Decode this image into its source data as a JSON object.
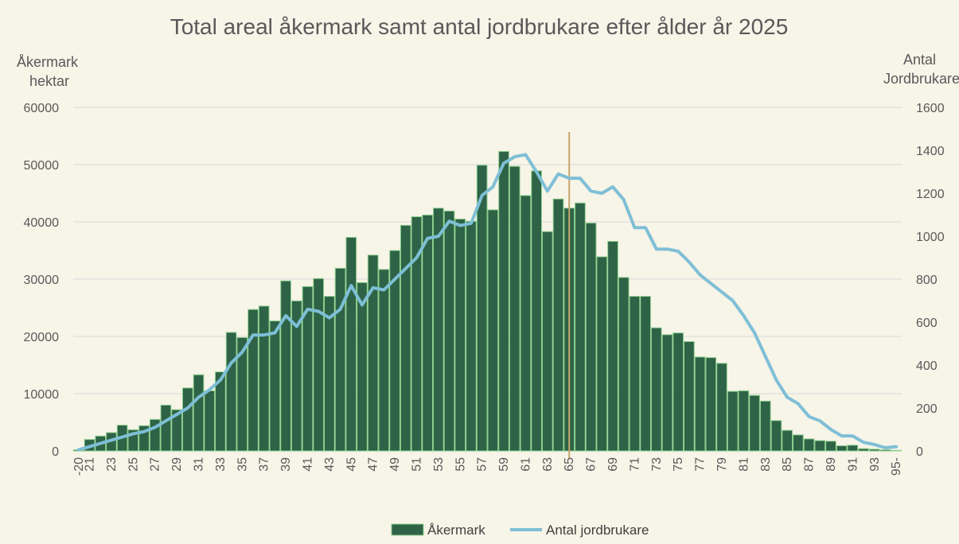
{
  "chart_data": {
    "type": "bar+line",
    "title": "Total areal åkermark samt antal jordbrukare efter ålder år 2025",
    "ylabel_left": [
      "Åkermark",
      "hektar"
    ],
    "ylabel_right": [
      "Antal",
      "Jordbrukare"
    ],
    "ylim_left": [
      0,
      60000
    ],
    "ylim_right": [
      0,
      1600
    ],
    "yticks_left": [
      "0",
      "10000",
      "20000",
      "30000",
      "40000",
      "50000",
      "60000"
    ],
    "yticks_right": [
      "0",
      "200",
      "400",
      "600",
      "800",
      "1000",
      "1200",
      "1400",
      "1600"
    ],
    "grid": true,
    "legend_position": "bottom",
    "categories": [
      "-20",
      "21",
      "22",
      "23",
      "24",
      "25",
      "26",
      "27",
      "28",
      "29",
      "30",
      "31",
      "32",
      "33",
      "34",
      "35",
      "36",
      "37",
      "38",
      "39",
      "40",
      "41",
      "42",
      "43",
      "44",
      "45",
      "46",
      "47",
      "48",
      "49",
      "50",
      "51",
      "52",
      "53",
      "54",
      "55",
      "56",
      "57",
      "58",
      "59",
      "60",
      "61",
      "62",
      "63",
      "64",
      "65",
      "66",
      "67",
      "68",
      "69",
      "70",
      "71",
      "72",
      "73",
      "74",
      "75",
      "76",
      "77",
      "78",
      "79",
      "80",
      "81",
      "82",
      "83",
      "84",
      "85",
      "86",
      "87",
      "88",
      "89",
      "90",
      "91",
      "92",
      "93",
      "94",
      "95-"
    ],
    "series": [
      {
        "name": "Åkermark",
        "type": "bar",
        "axis": "left",
        "color": "#2e6347",
        "edge_color": "#8ccf8c",
        "values": [
          200,
          2000,
          2600,
          3200,
          4500,
          3700,
          4400,
          5500,
          8000,
          7200,
          11000,
          13300,
          10500,
          13800,
          20700,
          19800,
          24700,
          25300,
          22700,
          29700,
          26200,
          28700,
          30100,
          27000,
          31900,
          37300,
          29400,
          34200,
          31700,
          35000,
          39400,
          40900,
          41200,
          42400,
          41900,
          40500,
          40100,
          49900,
          42100,
          52300,
          49700,
          44600,
          48900,
          38300,
          44000,
          42400,
          43300,
          39800,
          33900,
          36600,
          30300,
          27000,
          27000,
          21500,
          20300,
          20600,
          19100,
          16400,
          16300,
          15300,
          10400,
          10500,
          9700,
          8700,
          5300,
          3600,
          2800,
          2100,
          1800,
          1700,
          900,
          1000,
          400,
          300,
          200,
          100
        ]
      },
      {
        "name": "Antal jordbrukare",
        "type": "line",
        "axis": "right",
        "color": "#7ebfd6",
        "values": [
          5,
          20,
          35,
          50,
          65,
          80,
          90,
          110,
          140,
          170,
          200,
          250,
          285,
          330,
          410,
          460,
          540,
          540,
          550,
          630,
          580,
          660,
          650,
          620,
          660,
          770,
          680,
          760,
          750,
          800,
          850,
          900,
          990,
          1000,
          1070,
          1050,
          1060,
          1190,
          1230,
          1340,
          1370,
          1380,
          1300,
          1210,
          1290,
          1270,
          1270,
          1210,
          1200,
          1230,
          1170,
          1040,
          1040,
          940,
          940,
          930,
          880,
          820,
          780,
          740,
          700,
          630,
          550,
          440,
          330,
          250,
          220,
          160,
          140,
          100,
          70,
          70,
          40,
          30,
          15,
          20
        ]
      }
    ],
    "reference_line": {
      "category": "65",
      "color": "#c8a56a"
    }
  }
}
